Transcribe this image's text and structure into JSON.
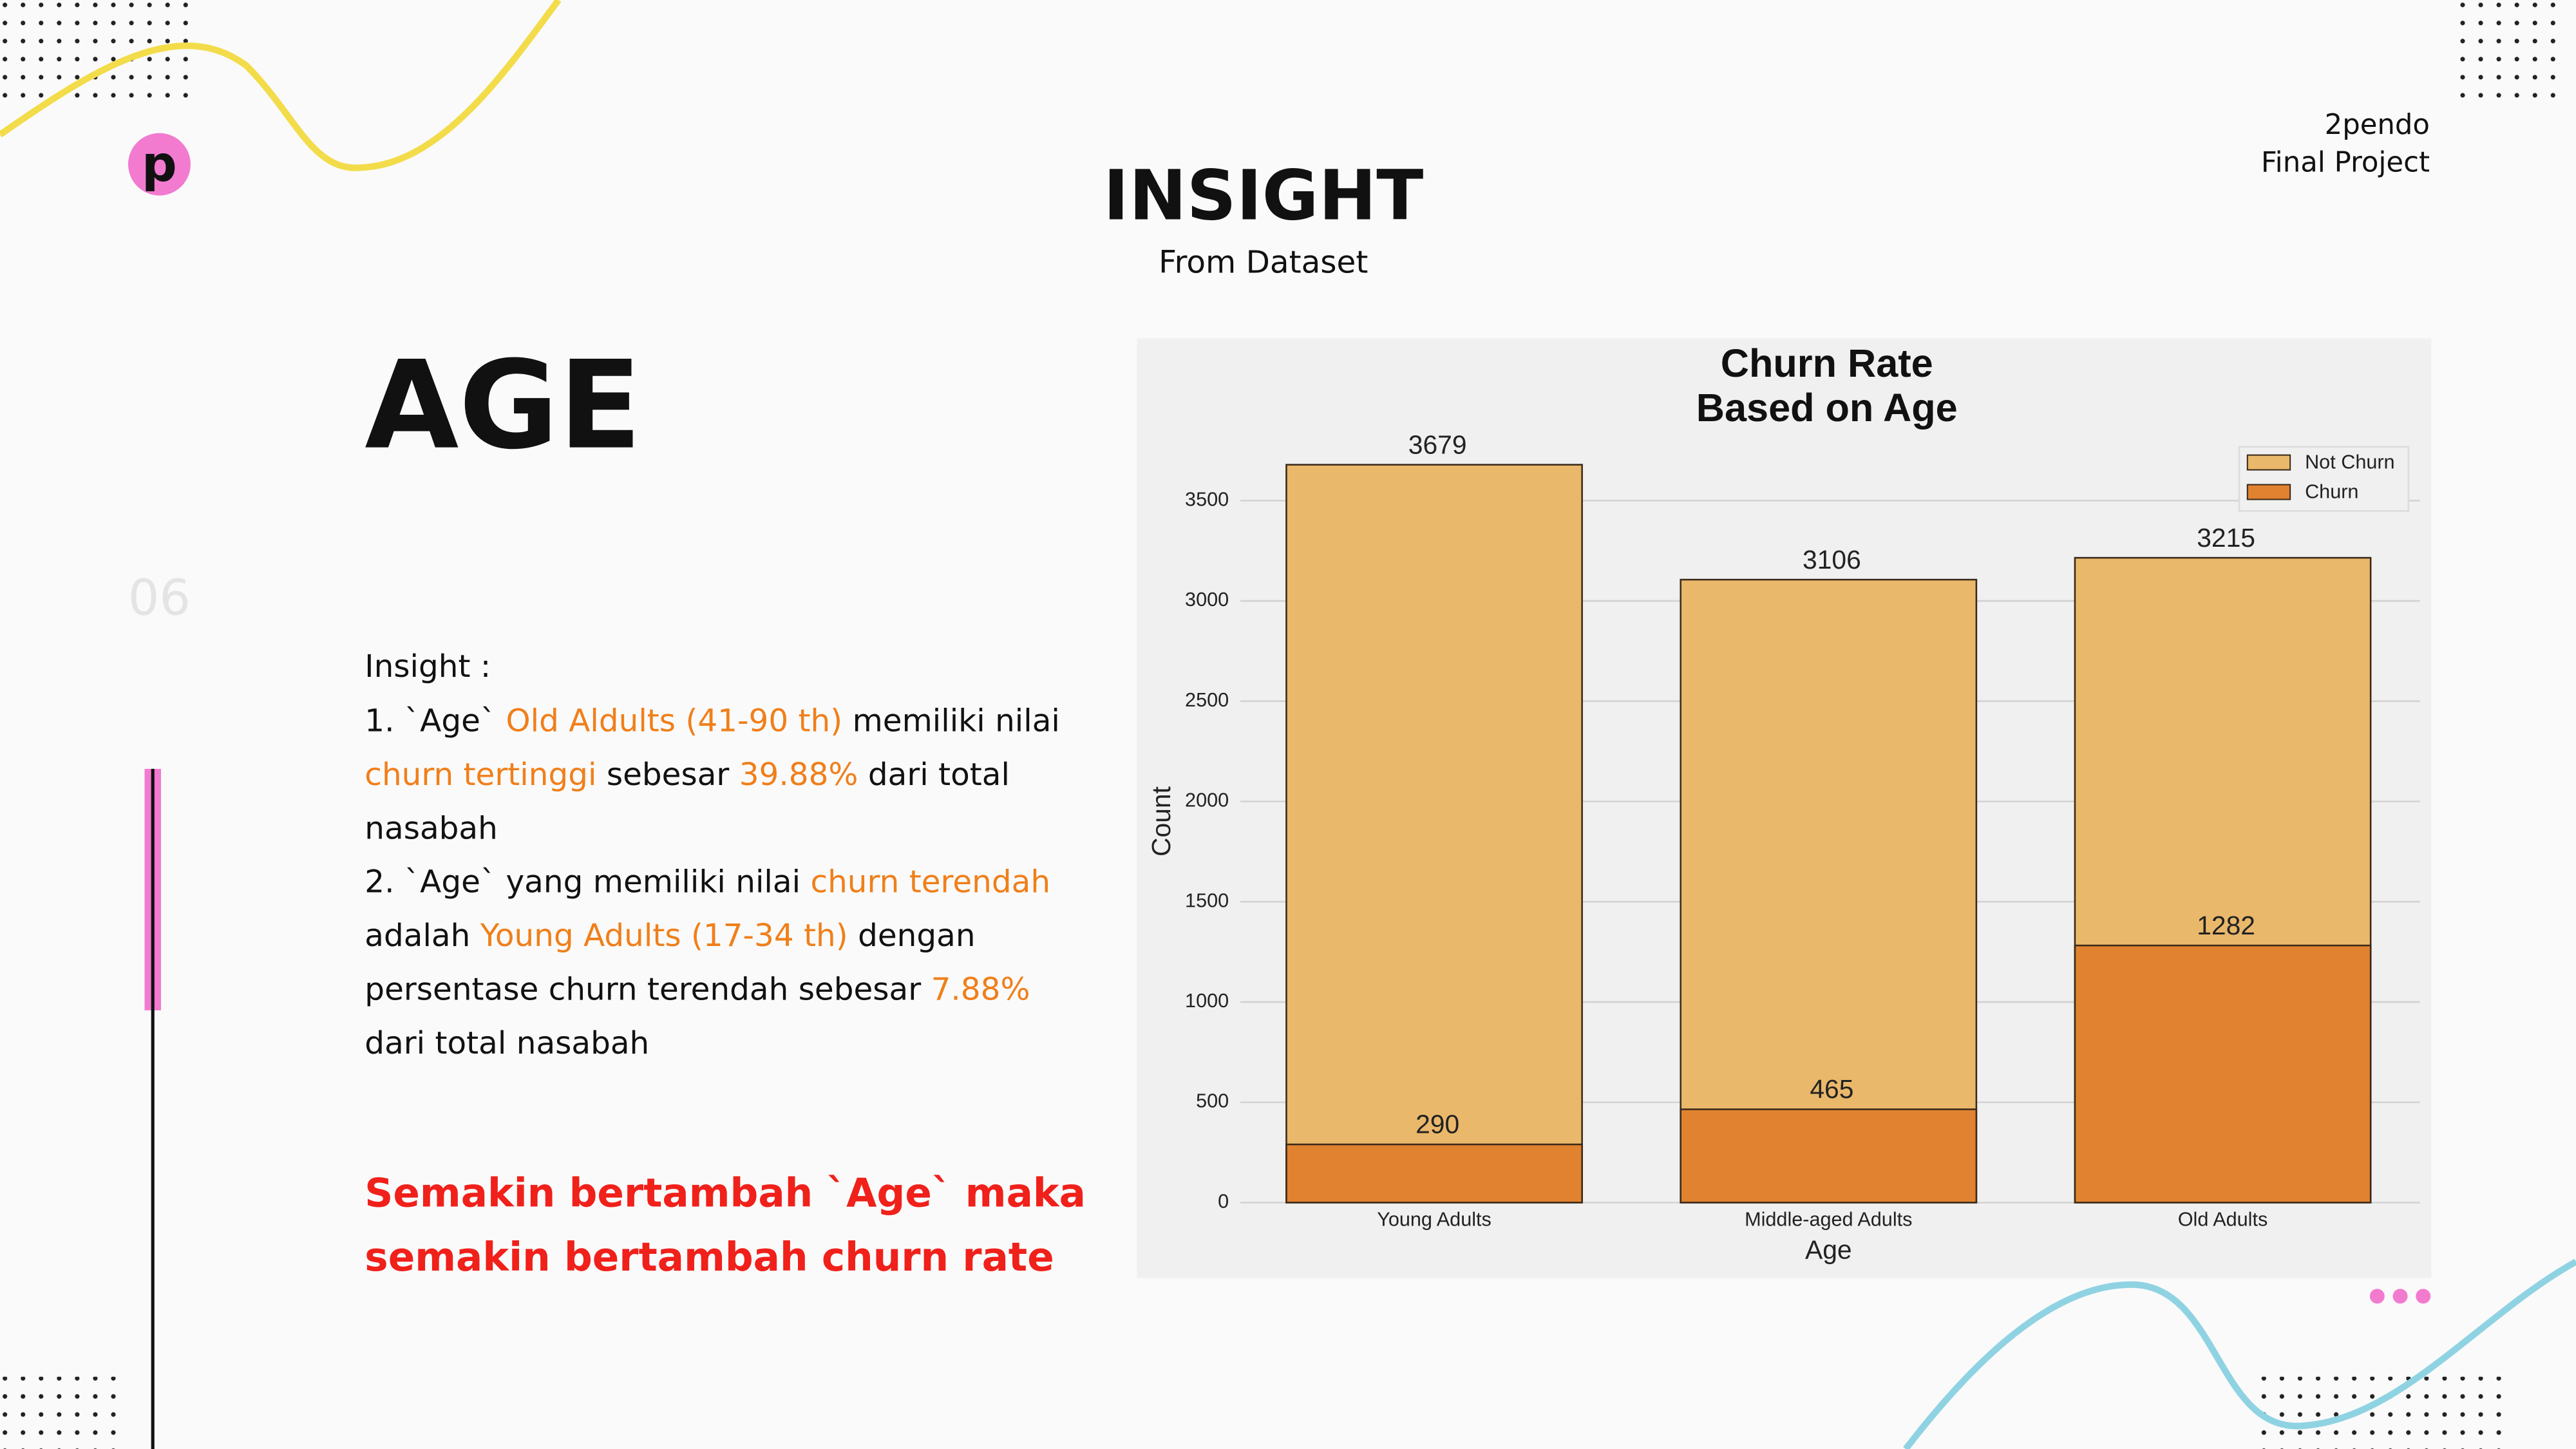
{
  "logo": "p",
  "header": {
    "title": "INSIGHT",
    "subtitle": "From Dataset",
    "brand": [
      "2pendo",
      "Final Project"
    ]
  },
  "section": {
    "title": "AGE",
    "number": "06"
  },
  "insight": {
    "heading": "Insight :",
    "lines": [
      [
        {
          "text": "1. `Age` ",
          "highlight": false
        },
        {
          "text": "Old Aldults (41-90 th)",
          "highlight": true
        },
        {
          "text": " memiliki nilai",
          "highlight": false
        }
      ],
      [
        {
          "text": "churn tertinggi",
          "highlight": true
        },
        {
          "text": " sebesar ",
          "highlight": false
        },
        {
          "text": "39.88%",
          "highlight": true
        },
        {
          "text": " dari total",
          "highlight": false
        }
      ],
      [
        {
          "text": "nasabah",
          "highlight": false
        }
      ],
      [
        {
          "text": "2. `Age` yang memiliki nilai ",
          "highlight": false
        },
        {
          "text": "churn terendah",
          "highlight": true
        }
      ],
      [
        {
          "text": "adalah ",
          "highlight": false
        },
        {
          "text": "Young Adults (17-34 th)",
          "highlight": true
        },
        {
          "text": " dengan",
          "highlight": false
        }
      ],
      [
        {
          "text": "persentase churn terendah sebesar ",
          "highlight": false
        },
        {
          "text": "7.88%",
          "highlight": true
        }
      ],
      [
        {
          "text": "dari total nasabah",
          "highlight": false
        }
      ]
    ]
  },
  "conclusion": [
    "Semakin bertambah `Age` maka",
    "semakin bertambah churn rate"
  ],
  "chart_data": {
    "type": "bar",
    "overlay": true,
    "title": [
      "Churn Rate",
      "Based on Age"
    ],
    "x_label": "Age",
    "y_label": "Count",
    "categories": [
      "Young Adults",
      "Middle-aged Adults",
      "Old Adults"
    ],
    "series": [
      {
        "name": "Not Churn",
        "color": "#eab86b",
        "values": [
          3679,
          3106,
          3215
        ]
      },
      {
        "name": "Churn",
        "color": "#e0822f",
        "values": [
          290,
          465,
          1282
        ]
      }
    ],
    "ylim": [
      0,
      3850
    ],
    "yticks": [
      0,
      500,
      1000,
      1500,
      2000,
      2500,
      3000,
      3500
    ],
    "grid": true,
    "legend": "upper right"
  }
}
